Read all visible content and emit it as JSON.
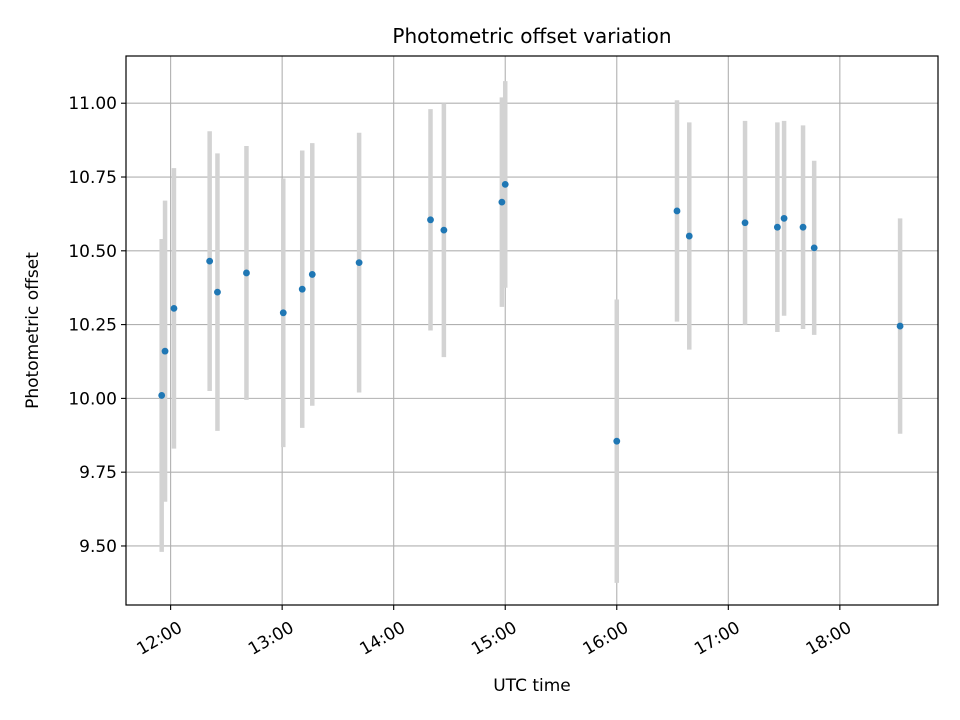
{
  "chart_data": {
    "type": "scatter",
    "title": "Photometric offset variation",
    "xlabel": "UTC time",
    "ylabel": "Photometric offset",
    "x_unit": "hour of day (UTC)",
    "xlim": [
      11.6,
      18.88
    ],
    "ylim": [
      9.3,
      11.16
    ],
    "x_ticks": [
      12,
      13,
      14,
      15,
      16,
      17,
      18
    ],
    "x_tick_labels": [
      "12:00",
      "13:00",
      "14:00",
      "15:00",
      "16:00",
      "17:00",
      "18:00"
    ],
    "y_ticks": [
      9.5,
      9.75,
      10.0,
      10.25,
      10.5,
      10.75,
      11.0
    ],
    "y_tick_labels": [
      "9.50",
      "9.75",
      "10.00",
      "10.25",
      "10.50",
      "10.75",
      "11.00"
    ],
    "grid": true,
    "marker_color": "#1f77b4",
    "errorbar_color": "#d3d3d3",
    "points": [
      {
        "time": "11:55",
        "x": 11.92,
        "y": 10.01,
        "yerr": 0.53
      },
      {
        "time": "11:57",
        "x": 11.95,
        "y": 10.16,
        "yerr": 0.51
      },
      {
        "time": "12:02",
        "x": 12.03,
        "y": 10.305,
        "yerr": 0.475
      },
      {
        "time": "12:21",
        "x": 12.35,
        "y": 10.465,
        "yerr": 0.44
      },
      {
        "time": "12:25",
        "x": 12.42,
        "y": 10.36,
        "yerr": 0.47
      },
      {
        "time": "12:41",
        "x": 12.68,
        "y": 10.425,
        "yerr": 0.43
      },
      {
        "time": "13:01",
        "x": 13.01,
        "y": 10.29,
        "yerr": 0.455
      },
      {
        "time": "13:11",
        "x": 13.18,
        "y": 10.37,
        "yerr": 0.47
      },
      {
        "time": "13:16",
        "x": 13.27,
        "y": 10.42,
        "yerr": 0.445
      },
      {
        "time": "13:41",
        "x": 13.69,
        "y": 10.46,
        "yerr": 0.44
      },
      {
        "time": "14:20",
        "x": 14.33,
        "y": 10.605,
        "yerr": 0.375
      },
      {
        "time": "14:27",
        "x": 14.45,
        "y": 10.57,
        "yerr": 0.43
      },
      {
        "time": "14:58",
        "x": 14.97,
        "y": 10.665,
        "yerr": 0.355
      },
      {
        "time": "15:00",
        "x": 15.0,
        "y": 10.725,
        "yerr": 0.35
      },
      {
        "time": "16:00",
        "x": 16.0,
        "y": 9.855,
        "yerr": 0.48
      },
      {
        "time": "16:32",
        "x": 16.54,
        "y": 10.635,
        "yerr": 0.375
      },
      {
        "time": "16:39",
        "x": 16.65,
        "y": 10.55,
        "yerr": 0.385
      },
      {
        "time": "17:09",
        "x": 17.15,
        "y": 10.595,
        "yerr": 0.345
      },
      {
        "time": "17:26",
        "x": 17.44,
        "y": 10.58,
        "yerr": 0.355
      },
      {
        "time": "17:30",
        "x": 17.5,
        "y": 10.61,
        "yerr": 0.33
      },
      {
        "time": "17:40",
        "x": 17.67,
        "y": 10.58,
        "yerr": 0.345
      },
      {
        "time": "17:46",
        "x": 17.77,
        "y": 10.51,
        "yerr": 0.295
      },
      {
        "time": "18:32",
        "x": 18.54,
        "y": 10.245,
        "yerr": 0.365
      }
    ]
  }
}
